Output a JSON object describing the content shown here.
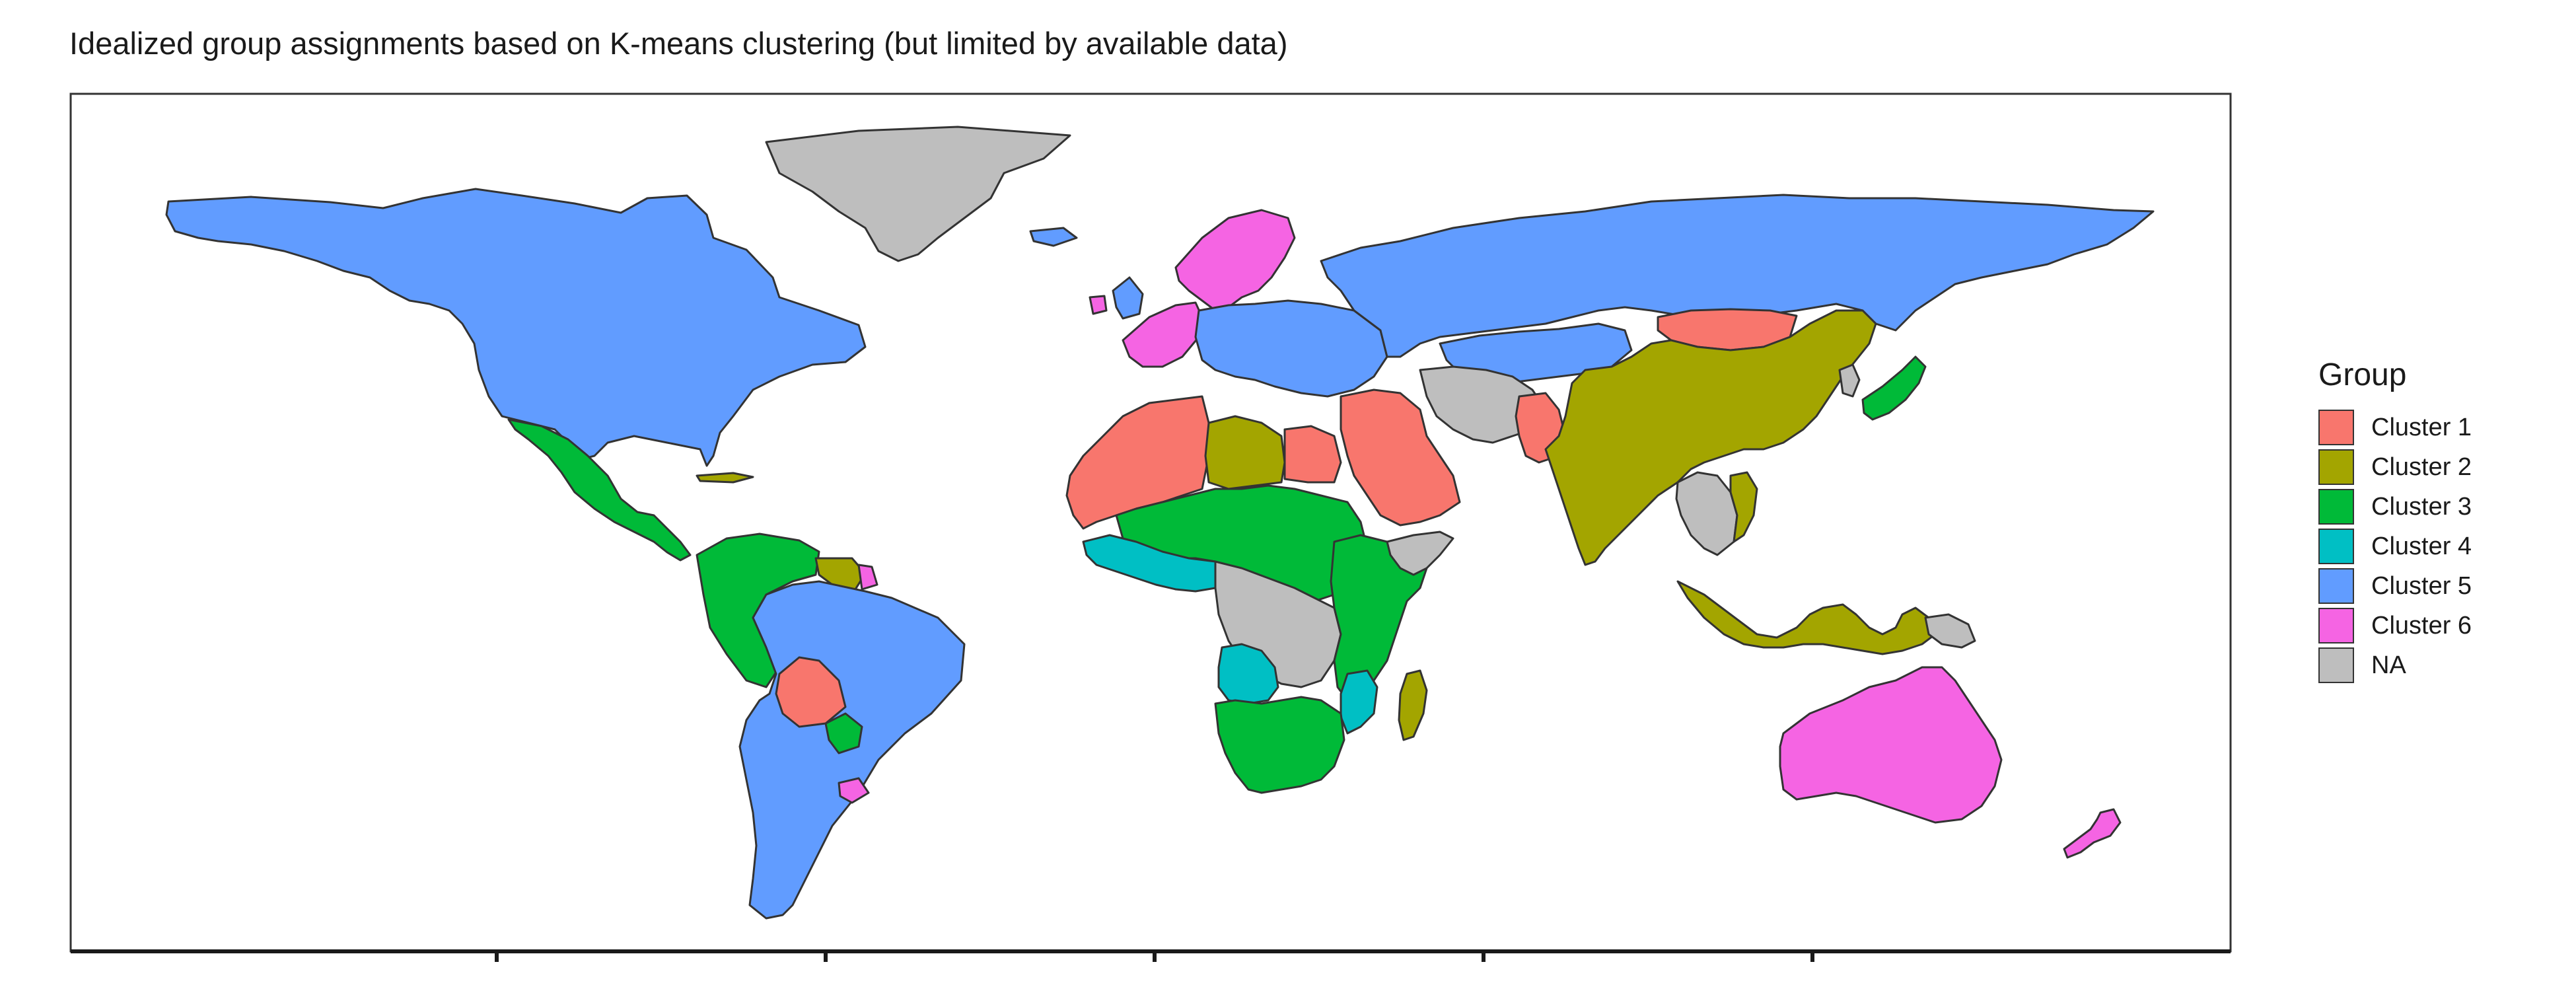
{
  "title": "Idealized group assignments based on K-means clustering (but limited by available data)",
  "legend": {
    "title": "Group",
    "items": [
      {
        "label": "Cluster 1",
        "color": "#F8766D"
      },
      {
        "label": "Cluster 2",
        "color": "#A3A500"
      },
      {
        "label": "Cluster 3",
        "color": "#00BA38"
      },
      {
        "label": "Cluster 4",
        "color": "#00BFC4"
      },
      {
        "label": "Cluster 5",
        "color": "#619CFF"
      },
      {
        "label": "Cluster 6",
        "color": "#F564E3"
      },
      {
        "label": "NA",
        "color": "#BEBEBE"
      }
    ]
  },
  "colors": {
    "Cluster 1": "#F8766D",
    "Cluster 2": "#A3A500",
    "Cluster 3": "#00BA38",
    "Cluster 4": "#00BFC4",
    "Cluster 5": "#619CFF",
    "Cluster 6": "#F564E3",
    "NA": "#BEBEBE",
    "border": "#333333",
    "panel_border": "#333333"
  },
  "regions": [
    {
      "name": "greenland",
      "group": "NA"
    },
    {
      "name": "north-america",
      "group": "Cluster 5"
    },
    {
      "name": "mexico-central-america",
      "group": "Cluster 3"
    },
    {
      "name": "caribbean",
      "group": "Cluster 2"
    },
    {
      "name": "northern-south-america",
      "group": "Cluster 3"
    },
    {
      "name": "guyana-suriname",
      "group": "Cluster 2"
    },
    {
      "name": "french-guiana",
      "group": "Cluster 6"
    },
    {
      "name": "brazil-argentina-chile",
      "group": "Cluster 5"
    },
    {
      "name": "bolivia",
      "group": "Cluster 1"
    },
    {
      "name": "paraguay",
      "group": "Cluster 3"
    },
    {
      "name": "uruguay",
      "group": "Cluster 6"
    },
    {
      "name": "iceland",
      "group": "Cluster 5"
    },
    {
      "name": "scandinavia",
      "group": "Cluster 6"
    },
    {
      "name": "western-europe",
      "group": "Cluster 6"
    },
    {
      "name": "uk",
      "group": "Cluster 5"
    },
    {
      "name": "ireland",
      "group": "Cluster 6"
    },
    {
      "name": "central-eastern-europe",
      "group": "Cluster 5"
    },
    {
      "name": "russia",
      "group": "Cluster 5"
    },
    {
      "name": "central-asia",
      "group": "Cluster 5"
    },
    {
      "name": "north-africa",
      "group": "Cluster 1"
    },
    {
      "name": "libya",
      "group": "Cluster 2"
    },
    {
      "name": "egypt",
      "group": "Cluster 1"
    },
    {
      "name": "middle-east",
      "group": "Cluster 1"
    },
    {
      "name": "iran-afghanistan",
      "group": "NA"
    },
    {
      "name": "pakistan",
      "group": "Cluster 1"
    },
    {
      "name": "mongolia",
      "group": "Cluster 1"
    },
    {
      "name": "china-india",
      "group": "Cluster 2"
    },
    {
      "name": "korea",
      "group": "NA"
    },
    {
      "name": "japan",
      "group": "Cluster 3"
    },
    {
      "name": "mainland-southeast-asia",
      "group": "NA"
    },
    {
      "name": "vietnam",
      "group": "Cluster 2"
    },
    {
      "name": "maritime-southeast-asia",
      "group": "Cluster 2"
    },
    {
      "name": "papua",
      "group": "NA"
    },
    {
      "name": "sahel-west-africa",
      "group": "Cluster 3"
    },
    {
      "name": "west-africa-coast",
      "group": "Cluster 4"
    },
    {
      "name": "central-africa",
      "group": "NA"
    },
    {
      "name": "east-africa",
      "group": "Cluster 3"
    },
    {
      "name": "horn-of-africa",
      "group": "NA"
    },
    {
      "name": "angola",
      "group": "Cluster 4"
    },
    {
      "name": "mozambique",
      "group": "Cluster 4"
    },
    {
      "name": "southern-africa",
      "group": "Cluster 3"
    },
    {
      "name": "madagascar",
      "group": "Cluster 2"
    },
    {
      "name": "australia",
      "group": "Cluster 6"
    },
    {
      "name": "new-zealand",
      "group": "Cluster 6"
    }
  ]
}
